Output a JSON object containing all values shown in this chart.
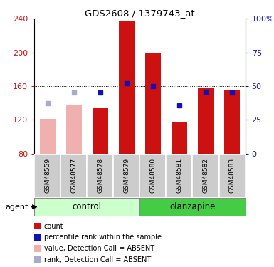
{
  "title": "GDS2608 / 1379743_at",
  "samples": [
    "GSM48559",
    "GSM48577",
    "GSM48578",
    "GSM48579",
    "GSM48580",
    "GSM48581",
    "GSM48582",
    "GSM48583"
  ],
  "count_values": [
    121,
    137,
    135,
    237,
    200,
    118,
    157,
    156
  ],
  "count_absent": [
    true,
    true,
    false,
    false,
    false,
    false,
    false,
    false
  ],
  "rank_values": [
    140,
    152,
    152,
    163,
    160,
    137,
    153,
    152
  ],
  "rank_absent": [
    true,
    true,
    false,
    false,
    false,
    false,
    false,
    false
  ],
  "y_min": 80,
  "y_max": 240,
  "y_ticks": [
    80,
    120,
    160,
    200,
    240
  ],
  "y2_labels": [
    "0",
    "25",
    "50",
    "75",
    "100%"
  ],
  "bar_color_red": "#cc1111",
  "bar_color_pink": "#f0b0b0",
  "rank_color_blue": "#1111bb",
  "rank_color_lightblue": "#aaaacc",
  "group_bg_control": "#ccffcc",
  "group_bg_olanzapine": "#44cc44",
  "sample_box_color": "#cccccc",
  "legend_items": [
    {
      "color": "#cc1111",
      "label": "count"
    },
    {
      "color": "#1111bb",
      "label": "percentile rank within the sample"
    },
    {
      "color": "#f0b0b0",
      "label": "value, Detection Call = ABSENT"
    },
    {
      "color": "#aaaacc",
      "label": "rank, Detection Call = ABSENT"
    }
  ]
}
